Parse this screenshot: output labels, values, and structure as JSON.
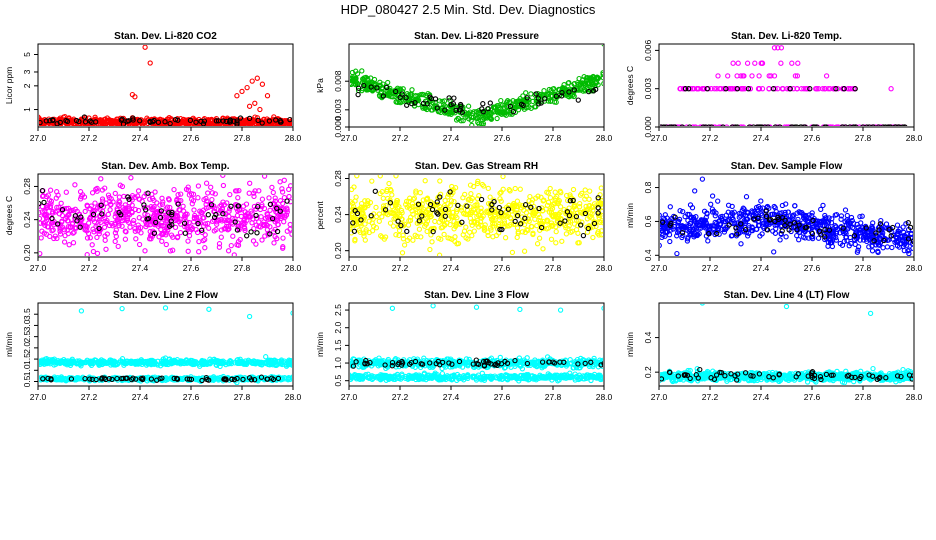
{
  "main_title": "HDP_080427  2.5 Min. Std. Dev. Diagnostics",
  "chart_data": [
    {
      "type": "scatter",
      "title": "Stan. Dev. Li-820 CO2",
      "ylabel": "Licor ppm",
      "xlim": [
        27.0,
        28.0
      ],
      "ylim": [
        0.6,
        6.8
      ],
      "ylog": true,
      "xticks": [
        "27.0",
        "27.2",
        "27.4",
        "27.6",
        "27.8",
        "28.0"
      ],
      "yticks": [
        {
          "v": 1,
          "label": "1"
        },
        {
          "v": 2,
          "label": "2"
        },
        {
          "v": 3,
          "label": "3"
        },
        {
          "v": 5,
          "label": "5"
        }
      ],
      "series": [
        {
          "name": "primary",
          "color": "#ff0000",
          "dense": {
            "n": 700,
            "base": 0.69,
            "spread": 0.04
          },
          "points": [
            [
              27.37,
              1.55
            ],
            [
              27.38,
              1.45
            ],
            [
              27.42,
              6.2
            ],
            [
              27.44,
              3.9
            ],
            [
              27.78,
              1.5
            ],
            [
              27.8,
              1.7
            ],
            [
              27.82,
              1.9
            ],
            [
              27.84,
              2.3
            ],
            [
              27.86,
              2.5
            ],
            [
              27.88,
              2.1
            ],
            [
              27.9,
              1.5
            ],
            [
              27.85,
              1.2
            ],
            [
              27.83,
              1.1
            ],
            [
              27.87,
              1.0
            ],
            [
              27.1,
              0.8
            ],
            [
              27.2,
              0.78
            ]
          ]
        },
        {
          "name": "black",
          "color": "#000000",
          "dense": {
            "n": 60,
            "base": 0.71,
            "spread": 0.03
          }
        }
      ]
    },
    {
      "type": "scatter",
      "title": "Stan. Dev. Li-820 Pressure",
      "ylabel": "kPa",
      "xlim": [
        27.0,
        28.0
      ],
      "ylim": [
        0,
        0.0145
      ],
      "xticks": [
        "27.0",
        "27.2",
        "27.4",
        "27.6",
        "27.8",
        "28.0"
      ],
      "yticks": [
        {
          "v": 0,
          "label": "0.000"
        },
        {
          "v": 0.003,
          "label": "0.003"
        },
        {
          "v": 0.008,
          "label": "0.008"
        }
      ],
      "series": [
        {
          "name": "primary",
          "color": "#00bb00",
          "band": {
            "n": 520,
            "levels": [
              0.0095,
              0.0085,
              0.0075,
              0.0065,
              0.0055,
              0.0045,
              0.0035,
              0.0025,
              0.0015,
              0.0005
            ]
          },
          "points": [
            [
              28.0,
              0.0145
            ],
            [
              27.05,
              0.0098
            ]
          ]
        },
        {
          "name": "black",
          "color": "#000000",
          "band": {
            "n": 55,
            "levels": [
              0.008,
              0.007,
              0.006,
              0.005,
              0.004,
              0.003
            ]
          }
        }
      ]
    },
    {
      "type": "scatter",
      "title": "Stan. Dev. Li-820 Temp.",
      "ylabel": "degrees C",
      "xlim": [
        27.0,
        28.0
      ],
      "ylim": [
        0,
        0.0065
      ],
      "xticks": [
        "27.0",
        "27.2",
        "27.4",
        "27.6",
        "27.8",
        "28.0"
      ],
      "yticks": [
        {
          "v": 0,
          "label": "0.000"
        },
        {
          "v": 0.003,
          "label": "0.003"
        },
        {
          "v": 0.006,
          "label": "0.006"
        }
      ],
      "series": [
        {
          "name": "primary",
          "color": "#ff00ff",
          "levels": [
            0,
            0.003,
            0.004,
            0.005,
            0.0062
          ],
          "level_ranges": [
            [
              27.0,
              28.0
            ],
            [
              27.08,
              27.77
            ],
            [
              27.17,
              27.68
            ],
            [
              27.28,
              27.55
            ],
            [
              27.45,
              27.48
            ]
          ],
          "level_counts": [
            130,
            85,
            14,
            10,
            2
          ],
          "points": [
            [
              27.91,
              0.003
            ],
            [
              27.48,
              0.0062
            ]
          ]
        },
        {
          "name": "black",
          "color": "#000000",
          "levels": [
            0,
            0.003
          ],
          "level_ranges": [
            [
              27.0,
              28.0
            ],
            [
              27.08,
              27.77
            ]
          ],
          "level_counts": [
            70,
            12
          ]
        }
      ]
    },
    {
      "type": "scatter",
      "title": "Stan. Dev. Amb. Box Temp.",
      "ylabel": "degrees C",
      "xlim": [
        27.0,
        28.0
      ],
      "ylim": [
        0.195,
        0.295
      ],
      "xticks": [
        "27.0",
        "27.2",
        "27.4",
        "27.6",
        "27.8",
        "28.0"
      ],
      "yticks": [
        {
          "v": 0.2,
          "label": "0.20"
        },
        {
          "v": 0.24,
          "label": "0.24"
        },
        {
          "v": 0.28,
          "label": "0.28"
        }
      ],
      "series": [
        {
          "name": "primary",
          "color": "#ff00ff",
          "cloud": {
            "n": 720,
            "mean": 0.243,
            "sd": 0.017,
            "min": 0.196,
            "max": 0.294
          }
        },
        {
          "name": "black",
          "color": "#000000",
          "cloud": {
            "n": 60,
            "mean": 0.244,
            "sd": 0.013,
            "min": 0.205,
            "max": 0.28
          }
        }
      ]
    },
    {
      "type": "scatter",
      "title": "Stan. Dev. Gas Stream RH",
      "ylabel": "percent",
      "xlim": [
        27.0,
        28.0
      ],
      "ylim": [
        0.193,
        0.285
      ],
      "xticks": [
        "27.0",
        "27.2",
        "27.4",
        "27.6",
        "27.8",
        "28.0"
      ],
      "yticks": [
        {
          "v": 0.2,
          "label": "0.20"
        },
        {
          "v": 0.24,
          "label": "0.24"
        },
        {
          "v": 0.28,
          "label": "0.28"
        }
      ],
      "series": [
        {
          "name": "primary",
          "color": "#ffff00",
          "cloud": {
            "n": 720,
            "mean": 0.24,
            "sd": 0.015,
            "min": 0.195,
            "max": 0.283
          }
        },
        {
          "name": "black",
          "color": "#000000",
          "cloud": {
            "n": 60,
            "mean": 0.237,
            "sd": 0.012,
            "min": 0.205,
            "max": 0.27
          }
        }
      ]
    },
    {
      "type": "scatter",
      "title": "Stan. Dev. Sample Flow",
      "ylabel": "ml/min",
      "xlim": [
        27.0,
        28.0
      ],
      "ylim": [
        0.39,
        0.88
      ],
      "xticks": [
        "27.0",
        "27.2",
        "27.4",
        "27.6",
        "27.8",
        "28.0"
      ],
      "yticks": [
        {
          "v": 0.4,
          "label": "0.4"
        },
        {
          "v": 0.6,
          "label": "0.6"
        },
        {
          "v": 0.8,
          "label": "0.8"
        }
      ],
      "series": [
        {
          "name": "primary",
          "color": "#0000ff",
          "trend": {
            "n": 720,
            "start": 0.56,
            "peak_x": 27.4,
            "peak": 0.61,
            "end": 0.5,
            "sd": 0.045
          },
          "points": [
            [
              27.17,
              0.85
            ],
            [
              27.21,
              0.75
            ],
            [
              27.23,
              0.72
            ],
            [
              27.07,
              0.41
            ],
            [
              27.45,
              0.42
            ],
            [
              27.78,
              0.43
            ],
            [
              27.98,
              0.41
            ],
            [
              27.14,
              0.78
            ]
          ]
        },
        {
          "name": "black",
          "color": "#000000",
          "trend": {
            "n": 55,
            "start": 0.56,
            "peak_x": 27.4,
            "peak": 0.6,
            "end": 0.52,
            "sd": 0.03
          }
        }
      ]
    },
    {
      "type": "scatter",
      "title": "Stan. Dev. Line 2 Flow",
      "ylabel": "ml/min",
      "xlim": [
        27.0,
        28.0
      ],
      "ylim": [
        0.3,
        4.0
      ],
      "xticks": [
        "27.0",
        "27.2",
        "27.4",
        "27.6",
        "27.8",
        "28.0"
      ],
      "yticks": [
        {
          "v": 0.5,
          "label": "0.5"
        },
        {
          "v": 1.0,
          "label": "1.0"
        },
        {
          "v": 1.5,
          "label": "1.5"
        },
        {
          "v": 2.0,
          "label": "2.0"
        },
        {
          "v": 2.5,
          "label": "2.5"
        },
        {
          "v": 3.0,
          "label": "3.0"
        },
        {
          "v": 3.5,
          "label": "3.5"
        }
      ],
      "series": [
        {
          "name": "primary",
          "color": "#00ffff",
          "bands": [
            {
              "n": 520,
              "mean": 1.35,
              "sd": 0.06
            },
            {
              "n": 380,
              "mean": 0.62,
              "sd": 0.04
            }
          ],
          "points": [
            [
              27.17,
              3.65
            ],
            [
              27.33,
              3.75
            ],
            [
              27.5,
              3.78
            ],
            [
              27.67,
              3.72
            ],
            [
              27.83,
              3.4
            ],
            [
              28.0,
              3.55
            ],
            [
              27.5,
              1.55
            ],
            [
              27.78,
              0.45
            ]
          ]
        },
        {
          "name": "black",
          "color": "#000000",
          "bands": [
            {
              "n": 60,
              "mean": 0.62,
              "sd": 0.03
            }
          ]
        }
      ]
    },
    {
      "type": "scatter",
      "title": "Stan. Dev. Line 3 Flow",
      "ylabel": "ml/min",
      "xlim": [
        27.0,
        28.0
      ],
      "ylim": [
        0.35,
        2.7
      ],
      "xticks": [
        "27.0",
        "27.2",
        "27.4",
        "27.6",
        "27.8",
        "28.0"
      ],
      "yticks": [
        {
          "v": 0.5,
          "label": "0.5"
        },
        {
          "v": 1.0,
          "label": "1.0"
        },
        {
          "v": 1.5,
          "label": "1.5"
        },
        {
          "v": 2.0,
          "label": "2.0"
        },
        {
          "v": 2.5,
          "label": "2.5"
        }
      ],
      "series": [
        {
          "name": "primary",
          "color": "#00ffff",
          "bands": [
            {
              "n": 500,
              "mean": 1.0,
              "sd": 0.06
            },
            {
              "n": 420,
              "mean": 0.6,
              "sd": 0.04
            }
          ],
          "points": [
            [
              27.17,
              2.55
            ],
            [
              27.33,
              2.62
            ],
            [
              27.5,
              2.58
            ],
            [
              27.67,
              2.52
            ],
            [
              27.83,
              2.5
            ],
            [
              28.0,
              2.55
            ]
          ]
        },
        {
          "name": "black",
          "color": "#000000",
          "bands": [
            {
              "n": 60,
              "mean": 1.0,
              "sd": 0.04
            }
          ]
        }
      ]
    },
    {
      "type": "scatter",
      "title": "Stan. Dev. Line 4 (LT) Flow",
      "ylabel": "ml/min",
      "xlim": [
        27.0,
        28.0
      ],
      "ylim": [
        0.12,
        0.6
      ],
      "xticks": [
        "27.0",
        "27.2",
        "27.4",
        "27.6",
        "27.8",
        "28.0"
      ],
      "yticks": [
        {
          "v": 0.2,
          "label": "0.2"
        },
        {
          "v": 0.4,
          "label": "0.4"
        }
      ],
      "series": [
        {
          "name": "primary",
          "color": "#00ffff",
          "bands": [
            {
              "n": 780,
              "mean": 0.175,
              "sd": 0.012
            }
          ],
          "points": [
            [
              27.17,
              0.6
            ],
            [
              27.5,
              0.58
            ],
            [
              27.83,
              0.54
            ],
            [
              27.15,
              0.22
            ]
          ]
        },
        {
          "name": "black",
          "color": "#000000",
          "bands": [
            {
              "n": 60,
              "mean": 0.178,
              "sd": 0.012
            }
          ],
          "points": [
            [
              27.16,
              0.215
            ]
          ]
        }
      ]
    }
  ]
}
